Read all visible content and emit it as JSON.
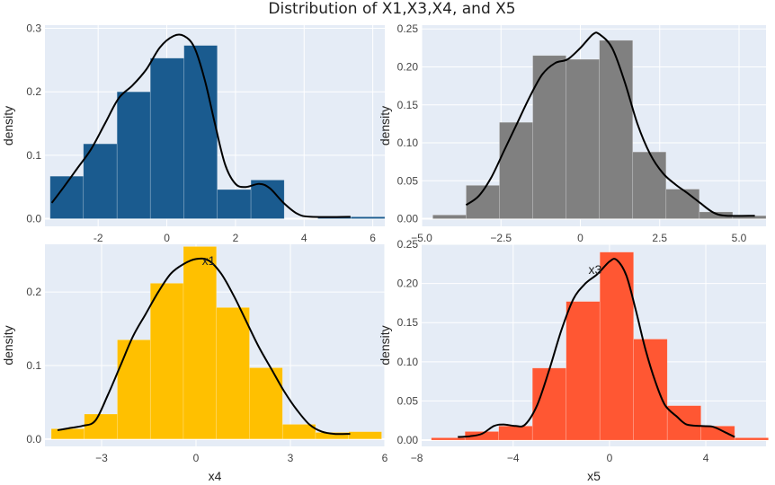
{
  "title": "Distribution of X1,X3,X4, and X5",
  "chart_data": [
    {
      "type": "bar",
      "variable": "X1",
      "color": "#1a5b8f",
      "xlabel": "",
      "ylabel": "density",
      "xlim": [
        -3.55,
        6.35
      ],
      "ylim": [
        -0.012,
        0.305
      ],
      "xticks": [
        -2,
        0,
        2,
        4,
        6
      ],
      "xtick_labels": [
        "-2",
        "0",
        "2",
        "4",
        "6"
      ],
      "yticks": [
        0,
        0.1,
        0.2,
        0.3
      ],
      "ytick_labels": [
        "0.0",
        "0.1",
        "0.2",
        "0.3"
      ],
      "annotation": "",
      "bins": [
        {
          "x0": -3.4,
          "x1": -2.43,
          "value": 0.067
        },
        {
          "x0": -2.43,
          "x1": -1.45,
          "value": 0.118
        },
        {
          "x0": -1.45,
          "x1": -0.48,
          "value": 0.2
        },
        {
          "x0": -0.48,
          "x1": 0.5,
          "value": 0.253
        },
        {
          "x0": 0.5,
          "x1": 1.47,
          "value": 0.273
        },
        {
          "x0": 1.47,
          "x1": 2.45,
          "value": 0.046
        },
        {
          "x0": 2.45,
          "x1": 3.42,
          "value": 0.061
        },
        {
          "x0": 3.42,
          "x1": 4.4,
          "value": 0.0
        },
        {
          "x0": 4.4,
          "x1": 5.37,
          "value": 0.003
        },
        {
          "x0": 5.37,
          "x1": 6.35,
          "value": 0.003
        }
      ],
      "density_curve": [
        [
          -3.35,
          0.025
        ],
        [
          -3.0,
          0.05
        ],
        [
          -2.6,
          0.08
        ],
        [
          -2.2,
          0.11
        ],
        [
          -1.8,
          0.15
        ],
        [
          -1.4,
          0.19
        ],
        [
          -1.0,
          0.21
        ],
        [
          -0.6,
          0.235
        ],
        [
          -0.2,
          0.27
        ],
        [
          0.2,
          0.288
        ],
        [
          0.5,
          0.288
        ],
        [
          0.8,
          0.27
        ],
        [
          1.1,
          0.22
        ],
        [
          1.4,
          0.15
        ],
        [
          1.7,
          0.085
        ],
        [
          2.0,
          0.055
        ],
        [
          2.3,
          0.05
        ],
        [
          2.7,
          0.055
        ],
        [
          3.0,
          0.048
        ],
        [
          3.4,
          0.025
        ],
        [
          3.8,
          0.008
        ],
        [
          4.2,
          0.003
        ],
        [
          5.35,
          0.003
        ]
      ]
    },
    {
      "type": "bar",
      "variable": "X3",
      "color": "#808080",
      "xlabel": "",
      "ylabel": "density",
      "xlim": [
        -5.0,
        5.85
      ],
      "ylim": [
        -0.01,
        0.255
      ],
      "xticks": [
        -5,
        -2.5,
        0,
        2.5,
        5
      ],
      "xtick_labels": [
        "−5.0",
        "−2.5",
        "0",
        "2.5",
        "5.0"
      ],
      "yticks": [
        0,
        0.05,
        0.1,
        0.15,
        0.2,
        0.25
      ],
      "ytick_labels": [
        "0.00",
        "0.05",
        "0.10",
        "0.15",
        "0.20",
        "0.25"
      ],
      "annotation": "",
      "bins": [
        {
          "x0": -4.65,
          "x1": -3.6,
          "value": 0.005
        },
        {
          "x0": -3.6,
          "x1": -2.55,
          "value": 0.044
        },
        {
          "x0": -2.55,
          "x1": -1.5,
          "value": 0.127
        },
        {
          "x0": -1.5,
          "x1": -0.45,
          "value": 0.215
        },
        {
          "x0": -0.45,
          "x1": 0.6,
          "value": 0.21
        },
        {
          "x0": 0.6,
          "x1": 1.65,
          "value": 0.235
        },
        {
          "x0": 1.65,
          "x1": 2.7,
          "value": 0.088
        },
        {
          "x0": 2.7,
          "x1": 3.75,
          "value": 0.039
        },
        {
          "x0": 3.75,
          "x1": 4.8,
          "value": 0.009
        },
        {
          "x0": 4.8,
          "x1": 5.85,
          "value": 0.004
        }
      ],
      "density_curve": [
        [
          -3.6,
          0.018
        ],
        [
          -3.2,
          0.03
        ],
        [
          -2.8,
          0.055
        ],
        [
          -2.4,
          0.09
        ],
        [
          -2.0,
          0.125
        ],
        [
          -1.6,
          0.16
        ],
        [
          -1.2,
          0.19
        ],
        [
          -0.8,
          0.205
        ],
        [
          -0.4,
          0.21
        ],
        [
          0.0,
          0.225
        ],
        [
          0.4,
          0.243
        ],
        [
          0.6,
          0.243
        ],
        [
          1.0,
          0.225
        ],
        [
          1.4,
          0.18
        ],
        [
          1.8,
          0.125
        ],
        [
          2.2,
          0.085
        ],
        [
          2.6,
          0.06
        ],
        [
          3.0,
          0.045
        ],
        [
          3.4,
          0.033
        ],
        [
          3.8,
          0.02
        ],
        [
          4.2,
          0.008
        ],
        [
          4.6,
          0.004
        ],
        [
          5.5,
          0.004
        ]
      ]
    },
    {
      "type": "bar",
      "variable": "X4",
      "color": "#ffc000",
      "xlabel": "x4",
      "ylabel": "density",
      "xlim": [
        -4.8,
        6.0
      ],
      "ylim": [
        -0.01,
        0.265
      ],
      "xticks": [
        -3,
        0,
        3,
        6
      ],
      "xtick_labels": [
        "−3",
        "0",
        "3",
        "6"
      ],
      "yticks": [
        0,
        0.1,
        0.2
      ],
      "ytick_labels": [
        "0.0",
        "0.1",
        "0.2"
      ],
      "annotation": "x1",
      "annotation_x": 0.4,
      "annotation_y": 0.237,
      "bins": [
        {
          "x0": -4.6,
          "x1": -3.55,
          "value": 0.014
        },
        {
          "x0": -3.55,
          "x1": -2.5,
          "value": 0.034
        },
        {
          "x0": -2.5,
          "x1": -1.45,
          "value": 0.135
        },
        {
          "x0": -1.45,
          "x1": -0.4,
          "value": 0.212
        },
        {
          "x0": -0.4,
          "x1": 0.65,
          "value": 0.262
        },
        {
          "x0": 0.65,
          "x1": 1.7,
          "value": 0.179
        },
        {
          "x0": 1.7,
          "x1": 2.75,
          "value": 0.097
        },
        {
          "x0": 2.75,
          "x1": 3.8,
          "value": 0.02
        },
        {
          "x0": 3.8,
          "x1": 4.85,
          "value": 0.009
        },
        {
          "x0": 4.85,
          "x1": 5.9,
          "value": 0.01
        }
      ],
      "density_curve": [
        [
          -4.4,
          0.012
        ],
        [
          -4.0,
          0.015
        ],
        [
          -3.6,
          0.018
        ],
        [
          -3.2,
          0.025
        ],
        [
          -2.8,
          0.06
        ],
        [
          -2.4,
          0.1
        ],
        [
          -2.0,
          0.14
        ],
        [
          -1.6,
          0.17
        ],
        [
          -1.2,
          0.2
        ],
        [
          -0.8,
          0.225
        ],
        [
          -0.4,
          0.238
        ],
        [
          0.0,
          0.245
        ],
        [
          0.4,
          0.243
        ],
        [
          0.8,
          0.225
        ],
        [
          1.2,
          0.195
        ],
        [
          1.6,
          0.16
        ],
        [
          2.0,
          0.125
        ],
        [
          2.4,
          0.095
        ],
        [
          2.8,
          0.065
        ],
        [
          3.2,
          0.04
        ],
        [
          3.6,
          0.02
        ],
        [
          4.0,
          0.01
        ],
        [
          4.4,
          0.007
        ],
        [
          4.9,
          0.007
        ]
      ]
    },
    {
      "type": "bar",
      "variable": "X5",
      "color": "#ff5733",
      "xlabel": "x5",
      "ylabel": "density",
      "xlim": [
        -7.8,
        6.5
      ],
      "ylim": [
        -0.008,
        0.25
      ],
      "xticks": [
        -8,
        -4,
        0,
        4
      ],
      "xtick_labels": [
        "−8",
        "−4",
        "0",
        "4"
      ],
      "yticks": [
        0,
        0.05,
        0.1,
        0.15,
        0.2,
        0.25
      ],
      "ytick_labels": [
        "0.00",
        "0.05",
        "0.10",
        "0.15",
        "0.20",
        "0.25"
      ],
      "annotation": "x3",
      "annotation_x": -0.6,
      "annotation_y": 0.212,
      "bins": [
        {
          "x0": -7.4,
          "x1": -6.0,
          "value": 0.003
        },
        {
          "x0": -6.0,
          "x1": -4.6,
          "value": 0.011
        },
        {
          "x0": -4.6,
          "x1": -3.2,
          "value": 0.018
        },
        {
          "x0": -3.2,
          "x1": -1.8,
          "value": 0.092
        },
        {
          "x0": -1.8,
          "x1": -0.4,
          "value": 0.177
        },
        {
          "x0": -0.4,
          "x1": 1.0,
          "value": 0.24
        },
        {
          "x0": 1.0,
          "x1": 2.4,
          "value": 0.129
        },
        {
          "x0": 2.4,
          "x1": 3.8,
          "value": 0.044
        },
        {
          "x0": 3.8,
          "x1": 5.2,
          "value": 0.018
        },
        {
          "x0": 5.2,
          "x1": 6.6,
          "value": 0.003
        }
      ],
      "density_curve": [
        [
          -6.3,
          0.004
        ],
        [
          -5.8,
          0.005
        ],
        [
          -5.3,
          0.008
        ],
        [
          -4.8,
          0.018
        ],
        [
          -4.4,
          0.02
        ],
        [
          -3.9,
          0.018
        ],
        [
          -3.5,
          0.02
        ],
        [
          -3.0,
          0.045
        ],
        [
          -2.5,
          0.09
        ],
        [
          -2.0,
          0.14
        ],
        [
          -1.5,
          0.18
        ],
        [
          -1.0,
          0.2
        ],
        [
          -0.5,
          0.212
        ],
        [
          0.0,
          0.228
        ],
        [
          0.3,
          0.23
        ],
        [
          0.7,
          0.21
        ],
        [
          1.1,
          0.165
        ],
        [
          1.5,
          0.115
        ],
        [
          1.9,
          0.075
        ],
        [
          2.3,
          0.045
        ],
        [
          2.8,
          0.03
        ],
        [
          3.2,
          0.02
        ],
        [
          3.8,
          0.018
        ],
        [
          4.3,
          0.017
        ],
        [
          4.8,
          0.01
        ],
        [
          5.2,
          0.004
        ]
      ]
    }
  ]
}
